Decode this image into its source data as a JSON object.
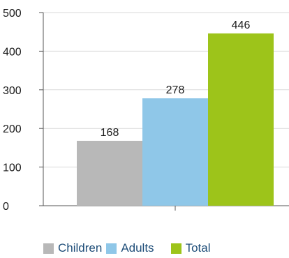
{
  "chart_data": {
    "type": "bar",
    "title": "",
    "xlabel": "",
    "ylabel": "",
    "ylim": [
      0,
      500
    ],
    "yticks": [
      0,
      100,
      200,
      300,
      400,
      500
    ],
    "grid": true,
    "legend_position": "bottom",
    "series": [
      {
        "name": "Children",
        "value": 168,
        "label": "168",
        "color": "#b8b8b8"
      },
      {
        "name": "Adults",
        "value": 278,
        "label": "278",
        "color": "#8fc7e8"
      },
      {
        "name": "Total",
        "value": 446,
        "label": "446",
        "color": "#9dc41a"
      }
    ]
  }
}
